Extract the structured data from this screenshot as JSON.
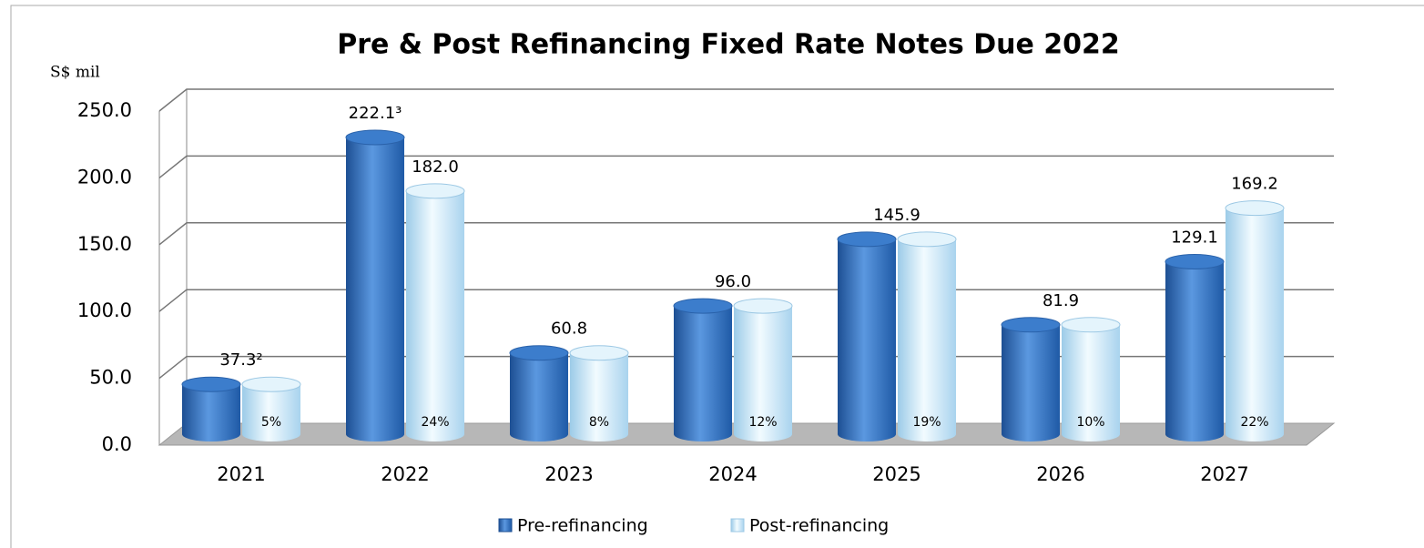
{
  "chart_data": {
    "type": "bar3d",
    "title": "Pre & Post Refinancing Fixed Rate Notes Due 2022",
    "ylabel": "S$ mil",
    "categories": [
      "2021",
      "2022",
      "2023",
      "2024",
      "2025",
      "2026",
      "2027"
    ],
    "series": [
      {
        "name": "Pre-refinancing",
        "color": "#2f6fbf",
        "values": [
          37.3,
          222.1,
          60.8,
          96.0,
          145.9,
          81.9,
          129.1
        ],
        "value_labels": [
          "37.3²",
          "222.1³",
          "60.8",
          "96.0",
          "145.9",
          "81.9",
          "129.1"
        ]
      },
      {
        "name": "Post-refinancing",
        "color": "#c9e6f7",
        "values": [
          37.3,
          182.0,
          60.8,
          96.0,
          145.9,
          81.9,
          169.2
        ],
        "value_labels": [
          null,
          "182.0",
          null,
          null,
          null,
          null,
          "169.2"
        ],
        "inner_labels": [
          "5%",
          "24%",
          "8%",
          "12%",
          "19%",
          "10%",
          "22%"
        ]
      }
    ],
    "ylim": [
      0,
      250
    ],
    "yticks": [
      {
        "value": 0,
        "label": "0.0"
      },
      {
        "value": 50,
        "label": "50.0"
      },
      {
        "value": 100,
        "label": "100.0"
      },
      {
        "value": 150,
        "label": "150.0"
      },
      {
        "value": 200,
        "label": "200.0"
      },
      {
        "value": 250,
        "label": "250.0"
      }
    ],
    "grid": true,
    "legend": "bottom"
  }
}
